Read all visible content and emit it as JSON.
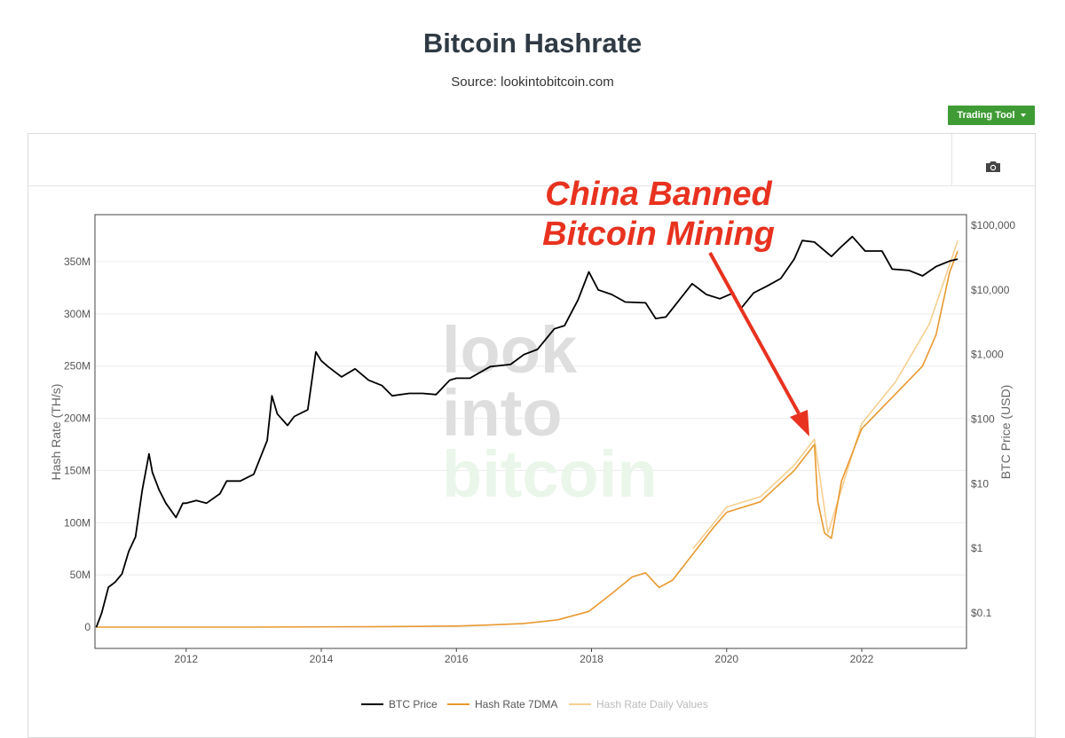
{
  "header": {
    "title": "Bitcoin Hashrate",
    "subtitle": "Source: lookintobitcoin.com"
  },
  "toolbar": {
    "trading_tool_label": "Trading Tool",
    "camera_icon": "camera-icon"
  },
  "annotation": {
    "line1": "China Banned",
    "line2": "Bitcoin Mining",
    "color": "#e8321f"
  },
  "watermark": {
    "line1": "look",
    "line2": "into",
    "line3": "bitcoin"
  },
  "colors": {
    "btc_price": "#000000",
    "hash_7dma": "#e8992f",
    "hash_daily": "#f5cf8f",
    "button": "#3f9c35"
  },
  "chart_data": {
    "type": "line",
    "xlabel": "",
    "ylabel": "Hash Rate (TH/s)",
    "y2label": "BTC Price (USD)",
    "x_ticks": [
      "2012",
      "2014",
      "2016",
      "2018",
      "2020",
      "2022"
    ],
    "xlim": [
      2010.65,
      2023.55
    ],
    "y_ticks": [
      "0",
      "50M",
      "100M",
      "150M",
      "200M",
      "250M",
      "300M",
      "350M"
    ],
    "ylim": [
      0,
      385000000
    ],
    "y2_ticks": [
      "$0.1",
      "$1",
      "$10",
      "$100",
      "$1,000",
      "$10,000",
      "$100,000"
    ],
    "y2_scale": "log",
    "y2lim": [
      0.03,
      230000
    ],
    "grid": true,
    "legend_position": "bottom",
    "series": [
      {
        "name": "BTC Price",
        "axis": "right",
        "x": [
          2010.67,
          2010.75,
          2010.85,
          2010.95,
          2011.05,
          2011.15,
          2011.25,
          2011.35,
          2011.45,
          2011.5,
          2011.6,
          2011.7,
          2011.85,
          2011.95,
          2012.0,
          2012.15,
          2012.3,
          2012.5,
          2012.6,
          2012.8,
          2013.0,
          2013.2,
          2013.27,
          2013.35,
          2013.5,
          2013.6,
          2013.8,
          2013.92,
          2014.0,
          2014.1,
          2014.3,
          2014.5,
          2014.7,
          2014.9,
          2015.05,
          2015.3,
          2015.5,
          2015.7,
          2015.9,
          2016.0,
          2016.2,
          2016.5,
          2016.8,
          2017.0,
          2017.2,
          2017.45,
          2017.6,
          2017.8,
          2017.96,
          2018.1,
          2018.3,
          2018.5,
          2018.8,
          2018.95,
          2019.1,
          2019.3,
          2019.49,
          2019.7,
          2019.9,
          2020.1,
          2020.2,
          2020.4,
          2020.6,
          2020.8,
          2021.0,
          2021.12,
          2021.3,
          2021.55,
          2021.7,
          2021.86,
          2022.05,
          2022.3,
          2022.45,
          2022.7,
          2022.9,
          2023.1,
          2023.3,
          2023.42
        ],
        "values": [
          0.06,
          0.1,
          0.25,
          0.3,
          0.4,
          0.9,
          1.5,
          8,
          29,
          15,
          8,
          5,
          3,
          5,
          5,
          5.5,
          5,
          7,
          11,
          11,
          14,
          47,
          230,
          120,
          80,
          110,
          140,
          1100,
          800,
          650,
          450,
          600,
          400,
          330,
          230,
          250,
          250,
          240,
          400,
          430,
          430,
          650,
          700,
          1000,
          1200,
          2500,
          2800,
          7000,
          19000,
          10000,
          8500,
          6500,
          6300,
          3600,
          3800,
          7000,
          12500,
          8500,
          7300,
          9000,
          5000,
          9000,
          11500,
          15000,
          30000,
          58000,
          55000,
          33000,
          47000,
          67000,
          40000,
          40000,
          21000,
          20000,
          16500,
          23000,
          28000,
          30000
        ]
      },
      {
        "name": "Hash Rate 7DMA",
        "axis": "left",
        "x": [
          2010.67,
          2013.0,
          2015.0,
          2016.0,
          2016.5,
          2017.0,
          2017.5,
          2017.96,
          2018.3,
          2018.6,
          2018.8,
          2019.0,
          2019.2,
          2019.5,
          2019.8,
          2020.0,
          2020.5,
          2021.0,
          2021.3,
          2021.35,
          2021.45,
          2021.55,
          2021.7,
          2022.0,
          2022.3,
          2022.6,
          2022.9,
          2023.1,
          2023.3,
          2023.42
        ],
        "values": [
          0,
          10000,
          500000,
          1000000,
          2000000,
          3500000,
          7000000,
          15000000,
          32000000,
          48000000,
          52000000,
          38000000,
          45000000,
          70000000,
          95000000,
          110000000,
          120000000,
          150000000,
          175000000,
          120000000,
          90000000,
          85000000,
          140000000,
          190000000,
          210000000,
          230000000,
          250000000,
          280000000,
          340000000,
          360000000
        ]
      },
      {
        "name": "Hash Rate Daily Values",
        "axis": "left",
        "x": [
          2019.5,
          2020.0,
          2020.5,
          2021.0,
          2021.3,
          2021.5,
          2022.0,
          2022.5,
          2023.0,
          2023.42
        ],
        "values": [
          75000000,
          115000000,
          125000000,
          155000000,
          180000000,
          90000000,
          195000000,
          235000000,
          290000000,
          370000000
        ]
      }
    ]
  }
}
